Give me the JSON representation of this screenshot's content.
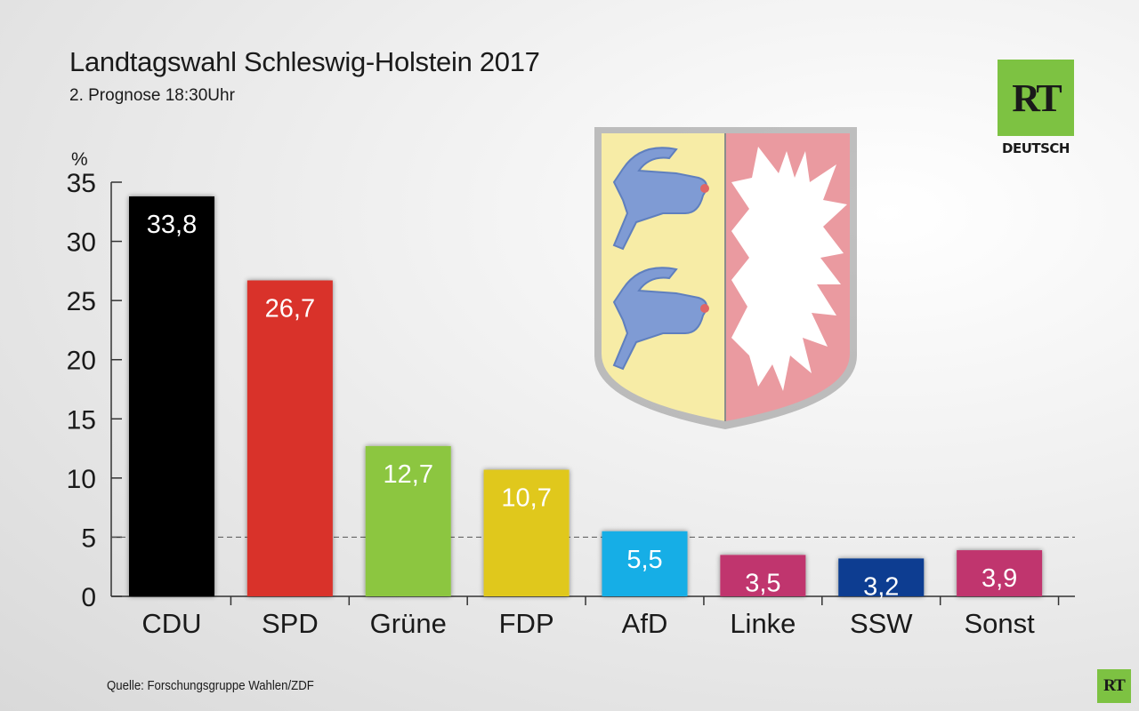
{
  "title": "Landtagswahl Schleswig-Holstein 2017",
  "subtitle": "2. Prognose 18:30Uhr",
  "source": "Quelle: Forschungsgruppe Wahlen/ZDF",
  "logo": {
    "text": "RT",
    "sub": "DEUTSCH"
  },
  "crest_icon": "schleswig-holstein-coat-of-arms",
  "chart_data": {
    "type": "bar",
    "title": "Landtagswahl Schleswig-Holstein 2017",
    "subtitle": "2. Prognose 18:30Uhr",
    "ylabel": "%",
    "xlabel": "",
    "ylim": [
      0,
      35
    ],
    "yticks": [
      0,
      5,
      10,
      15,
      20,
      25,
      30,
      35
    ],
    "threshold": 5,
    "grid": false,
    "legend": "none",
    "categories": [
      "CDU",
      "SPD",
      "Grüne",
      "FDP",
      "AfD",
      "Linke",
      "SSW",
      "Sonst"
    ],
    "values": [
      33.8,
      26.7,
      12.7,
      10.7,
      5.5,
      3.5,
      3.2,
      3.9
    ],
    "value_labels": [
      "33,8",
      "26,7",
      "12,7",
      "10,7",
      "5,5",
      "3,5",
      "3,2",
      "3,9"
    ],
    "colors": [
      "#000000",
      "#d9322b",
      "#8cc63f",
      "#e0c81e",
      "#14aee6",
      "#c0356e",
      "#0a3d91",
      "#c0356e"
    ]
  }
}
